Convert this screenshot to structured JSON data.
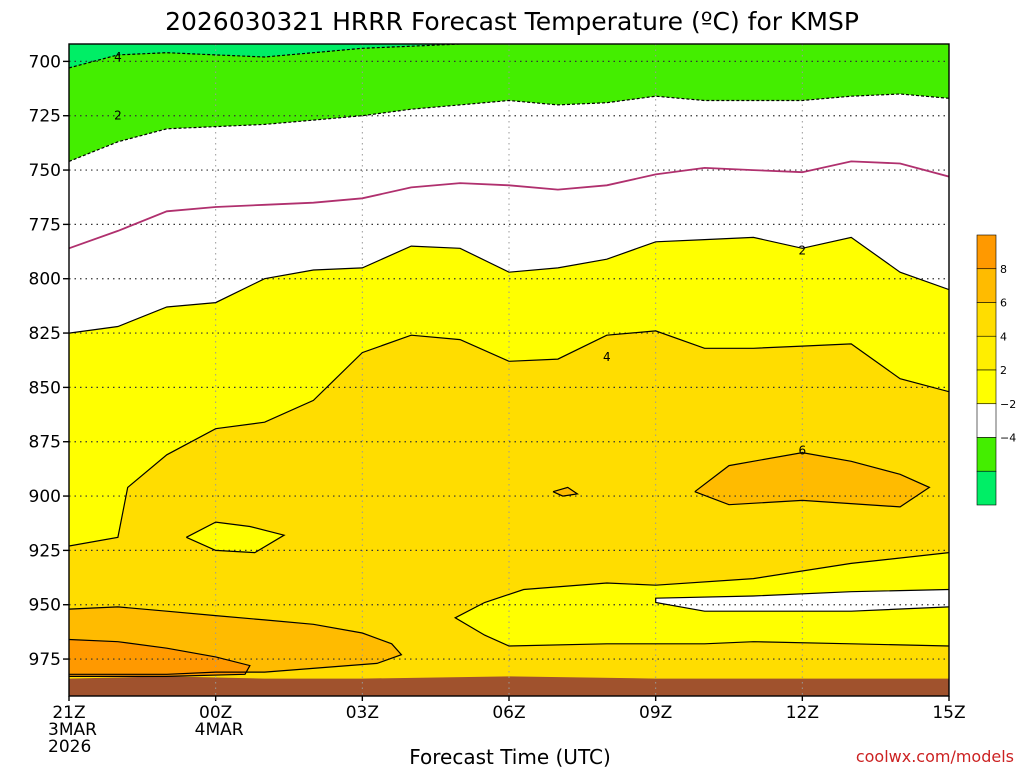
{
  "title": "2026030321 HRRR Forecast Temperature (ºC) for KMSP",
  "xlabel": "Forecast Time (UTC)",
  "credit": "coolwx.com/models",
  "chart_data": {
    "type": "contour",
    "title": "2026030321 HRRR Forecast Temperature (ºC) for KMSP",
    "xlabel": "Forecast Time (UTC)",
    "ylabel": "",
    "y_axis": "pressure (hPa), inverted",
    "ylim": [
      992,
      692
    ],
    "y_ticks": [
      700,
      725,
      750,
      775,
      800,
      825,
      850,
      875,
      900,
      925,
      950,
      975
    ],
    "x_ticks": [
      {
        "hour": 0,
        "lines": [
          "21Z",
          "3MAR",
          "2026"
        ]
      },
      {
        "hour": 3,
        "lines": [
          "00Z",
          "4MAR"
        ]
      },
      {
        "hour": 6,
        "lines": [
          "03Z"
        ]
      },
      {
        "hour": 9,
        "lines": [
          "06Z"
        ]
      },
      {
        "hour": 12,
        "lines": [
          "09Z"
        ]
      },
      {
        "hour": 15,
        "lines": [
          "12Z"
        ]
      },
      {
        "hour": 18,
        "lines": [
          "15Z"
        ]
      }
    ],
    "xlim": [
      0,
      18
    ],
    "grid": true,
    "ground_color": "#a0522d",
    "fill_levels": [
      {
        "range": "< -4",
        "color": "#00ee66"
      },
      {
        "range": "-4 to -2",
        "color": "#44ee00"
      },
      {
        "range": "-2 to 2",
        "color": "#ffffff"
      },
      {
        "range": "2 to 4",
        "color": "#ffff00"
      },
      {
        "range": "4 to 6",
        "color": "#ffdd00"
      },
      {
        "range": "6 to 8",
        "color": "#ffbb00"
      },
      {
        "range": "> 8",
        "color": "#ff9900"
      }
    ],
    "colorbar": {
      "labels": [
        "8",
        "6",
        "4",
        "2",
        "−2",
        "−4"
      ],
      "colors": [
        "#ff9900",
        "#ffbb00",
        "#ffdd00",
        "#ffee00",
        "#ffff00",
        "#ffffff",
        "#44ee00",
        "#00ee66"
      ]
    },
    "contours": [
      {
        "level": -4,
        "label": "4",
        "label_at": [
          1.0,
          698
        ],
        "style": "dashed",
        "points": [
          [
            0,
            703
          ],
          [
            1,
            697
          ],
          [
            2,
            696
          ],
          [
            3,
            697
          ],
          [
            4,
            698
          ],
          [
            5,
            696
          ],
          [
            6,
            694
          ],
          [
            7,
            693
          ],
          [
            8,
            692
          ]
        ]
      },
      {
        "level": -2,
        "label": "2",
        "label_at": [
          1.0,
          725
        ],
        "style": "dashed",
        "points": [
          [
            0,
            746
          ],
          [
            1,
            737
          ],
          [
            2,
            731
          ],
          [
            3,
            730
          ],
          [
            4,
            729
          ],
          [
            5,
            727
          ],
          [
            6,
            725
          ],
          [
            7,
            722
          ],
          [
            8,
            720
          ],
          [
            9,
            718
          ],
          [
            10,
            720
          ],
          [
            11,
            719
          ],
          [
            12,
            716
          ],
          [
            13,
            718
          ],
          [
            14,
            718
          ],
          [
            15,
            718
          ],
          [
            16,
            716
          ],
          [
            17,
            715
          ],
          [
            18,
            717
          ]
        ]
      },
      {
        "level": 0,
        "label": "",
        "label_at": null,
        "style": "magenta",
        "points": [
          [
            0,
            786
          ],
          [
            1,
            778
          ],
          [
            2,
            769
          ],
          [
            3,
            767
          ],
          [
            4,
            766
          ],
          [
            5,
            765
          ],
          [
            6,
            763
          ],
          [
            7,
            758
          ],
          [
            8,
            756
          ],
          [
            9,
            757
          ],
          [
            10,
            759
          ],
          [
            11,
            757
          ],
          [
            12,
            752
          ],
          [
            13,
            749
          ],
          [
            14,
            750
          ],
          [
            15,
            751
          ],
          [
            16,
            746
          ],
          [
            17,
            747
          ],
          [
            18,
            753
          ]
        ]
      },
      {
        "level": 2,
        "label": "2",
        "label_at": [
          15.0,
          787
        ],
        "style": "solid",
        "points": [
          [
            0,
            825
          ],
          [
            1,
            822
          ],
          [
            2,
            813
          ],
          [
            3,
            811
          ],
          [
            4,
            800
          ],
          [
            5,
            796
          ],
          [
            6,
            795
          ],
          [
            7,
            785
          ],
          [
            8,
            786
          ],
          [
            9,
            797
          ],
          [
            10,
            795
          ],
          [
            11,
            791
          ],
          [
            12,
            783
          ],
          [
            13,
            782
          ],
          [
            14,
            781
          ],
          [
            15,
            786
          ],
          [
            16,
            781
          ],
          [
            17,
            797
          ],
          [
            18,
            805
          ]
        ]
      },
      {
        "level": 4,
        "label": "4",
        "label_at": [
          11.0,
          836
        ],
        "style": "solid",
        "points": [
          [
            0,
            923
          ],
          [
            1,
            919
          ],
          [
            1.2,
            896
          ],
          [
            2,
            881
          ],
          [
            3,
            869
          ],
          [
            4,
            866
          ],
          [
            5,
            856
          ],
          [
            6,
            834
          ],
          [
            7,
            826
          ],
          [
            8,
            828
          ],
          [
            9,
            838
          ],
          [
            10,
            837
          ],
          [
            11,
            826
          ],
          [
            12,
            824
          ],
          [
            13,
            832
          ],
          [
            14,
            832
          ],
          [
            15,
            831
          ],
          [
            16,
            830
          ],
          [
            17,
            846
          ],
          [
            18,
            852
          ]
        ]
      },
      {
        "level": 4,
        "label": "",
        "label_at": null,
        "style": "solid",
        "points": [
          [
            2.4,
            919
          ],
          [
            3,
            912
          ],
          [
            3.7,
            914
          ],
          [
            4.4,
            918
          ],
          [
            3.8,
            926
          ],
          [
            3,
            925
          ],
          [
            2.4,
            919
          ]
        ]
      },
      {
        "level": 6,
        "label": "6",
        "label_at": [
          15.0,
          879
        ],
        "style": "solid",
        "points": [
          [
            12.8,
            898
          ],
          [
            13.5,
            886
          ],
          [
            15,
            880
          ],
          [
            16,
            884
          ],
          [
            17,
            890
          ],
          [
            17.6,
            896
          ],
          [
            17,
            905
          ],
          [
            15,
            902
          ],
          [
            13.5,
            904
          ],
          [
            12.8,
            898
          ]
        ]
      },
      {
        "level": 6,
        "label": "",
        "label_at": null,
        "style": "solid",
        "points": [
          [
            9.9,
            898
          ],
          [
            10.2,
            896
          ],
          [
            10.4,
            899
          ],
          [
            10.1,
            900
          ],
          [
            9.9,
            898
          ]
        ]
      },
      {
        "level": 4,
        "label": "",
        "label_at": null,
        "style": "solid",
        "points": [
          [
            18,
            926
          ],
          [
            16,
            931
          ],
          [
            14,
            938
          ],
          [
            12,
            941
          ],
          [
            11,
            940
          ],
          [
            9.3,
            943
          ],
          [
            8.5,
            949
          ],
          [
            7.9,
            956
          ],
          [
            8.5,
            964
          ],
          [
            9,
            969
          ],
          [
            11,
            968
          ],
          [
            13,
            968
          ],
          [
            14,
            967
          ],
          [
            16,
            968
          ],
          [
            18,
            969
          ]
        ]
      },
      {
        "level": 2,
        "label": "",
        "label_at": null,
        "style": "solid",
        "points": [
          [
            18,
            943
          ],
          [
            16,
            944
          ],
          [
            14,
            946
          ],
          [
            12,
            947
          ],
          [
            12,
            949
          ],
          [
            13,
            953
          ],
          [
            16,
            953
          ],
          [
            18,
            951
          ]
        ]
      },
      {
        "level": 6,
        "label": "",
        "label_at": null,
        "style": "solid",
        "points": [
          [
            0,
            952
          ],
          [
            1,
            951
          ],
          [
            2,
            953
          ],
          [
            3,
            955
          ],
          [
            4,
            957
          ],
          [
            5,
            959
          ],
          [
            6,
            963
          ],
          [
            6.6,
            968
          ],
          [
            6.8,
            973
          ],
          [
            6.3,
            977
          ],
          [
            4,
            981
          ],
          [
            3,
            981
          ],
          [
            2,
            982
          ],
          [
            0,
            982
          ]
        ]
      },
      {
        "level": 8,
        "label": "",
        "label_at": null,
        "style": "solid",
        "points": [
          [
            0,
            966
          ],
          [
            1,
            967
          ],
          [
            2,
            970
          ],
          [
            3,
            974
          ],
          [
            3.7,
            978
          ],
          [
            3.6,
            982
          ],
          [
            2,
            983
          ],
          [
            0,
            983
          ]
        ]
      }
    ],
    "fill_bands": [
      {
        "level_color": "#00ee66",
        "top": "plot_top",
        "bottom_contour": 0
      },
      {
        "level_color": "#44ee00",
        "top_contour": 0,
        "bottom_contour": 1
      },
      {
        "level_color": "#ffffff",
        "top_contour": 1,
        "bottom_contour": 3
      },
      {
        "level_color": "#ffff00",
        "top_contour": 3,
        "bottom": "plot_bottom"
      }
    ],
    "fill_regions": [
      {
        "contour": 4,
        "color": "#ffdd00",
        "closed_to_bottom": true
      },
      {
        "contour": 5,
        "color": "#ffff00"
      },
      {
        "contour": 6,
        "color": "#ffbb00"
      },
      {
        "contour": 7,
        "color": "#ffbb00"
      },
      {
        "contour": 8,
        "color": "#ffff00",
        "closed_to_bottom": true
      },
      {
        "contour": 9,
        "color": "#ffffff",
        "closed_to_bottom": true
      },
      {
        "contour": 10,
        "color": "#ffbb00",
        "closed_to_bottom": true
      },
      {
        "contour": 11,
        "color": "#ff9900",
        "closed_to_bottom": true
      }
    ],
    "ground": [
      [
        0,
        984
      ],
      [
        2,
        983
      ],
      [
        4,
        984
      ],
      [
        6,
        984
      ],
      [
        9,
        983
      ],
      [
        12,
        984
      ],
      [
        15,
        984
      ],
      [
        18,
        984
      ]
    ]
  }
}
